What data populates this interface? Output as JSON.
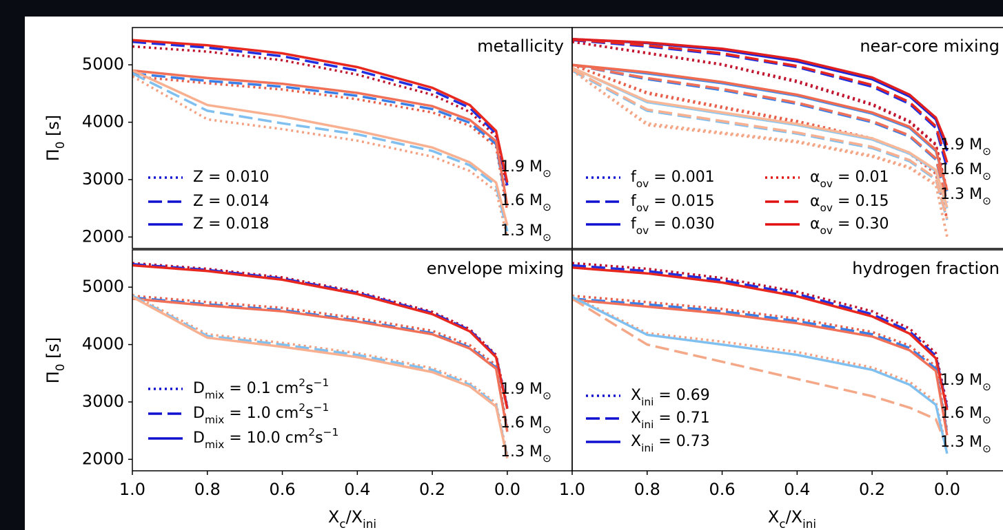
{
  "chart_data": [
    {
      "type": "line",
      "title": "metallicity",
      "ylabel": "Π_{0} [s]",
      "x": [
        1.0,
        0.8,
        0.6,
        0.4,
        0.2,
        0.1,
        0.03,
        0.0
      ],
      "xlim": [
        1.0,
        -0.173
      ],
      "ylim": [
        1800,
        5650
      ],
      "yticks": [
        2000,
        3000,
        4000,
        5000
      ],
      "masses": [
        "1.9 M_{⊙}",
        "1.6 M_{⊙}",
        "1.3 M_{⊙}"
      ],
      "variants": [
        {
          "name": "Z = 0.010",
          "dash": "dotted",
          "color": "#1010d0"
        },
        {
          "name": "Z = 0.014",
          "dash": "dashed",
          "color": "#1010d0"
        },
        {
          "name": "Z = 0.018",
          "dash": "solid",
          "color": "#1010d0"
        }
      ],
      "series": [
        {
          "variant": 0,
          "mass": 0,
          "color": "#c0142c",
          "values": [
            5320,
            5230,
            5080,
            4830,
            4480,
            4180,
            3750,
            2850
          ]
        },
        {
          "variant": 1,
          "mass": 0,
          "color": "#2030e0",
          "values": [
            5400,
            5300,
            5150,
            4900,
            4550,
            4250,
            3800,
            2900
          ]
        },
        {
          "variant": 2,
          "mass": 0,
          "color": "#e8281e",
          "values": [
            5430,
            5340,
            5200,
            4960,
            4600,
            4300,
            3850,
            2950
          ]
        },
        {
          "variant": 0,
          "mass": 1,
          "color": "#e8604a",
          "values": [
            4800,
            4680,
            4570,
            4400,
            4170,
            3940,
            3570,
            2450
          ]
        },
        {
          "variant": 1,
          "mass": 1,
          "color": "#3a7ee8",
          "values": [
            4850,
            4720,
            4620,
            4460,
            4230,
            3990,
            3620,
            2500
          ]
        },
        {
          "variant": 2,
          "mass": 1,
          "color": "#f07058",
          "values": [
            4900,
            4770,
            4670,
            4510,
            4280,
            4040,
            3670,
            2550
          ]
        },
        {
          "variant": 0,
          "mass": 2,
          "color": "#f4a080",
          "values": [
            4800,
            4050,
            3880,
            3680,
            3400,
            3150,
            2800,
            2000
          ]
        },
        {
          "variant": 1,
          "mass": 2,
          "color": "#80c0f0",
          "values": [
            4850,
            4200,
            3980,
            3790,
            3500,
            3250,
            2900,
            2100
          ]
        },
        {
          "variant": 2,
          "mass": 2,
          "color": "#f8b090",
          "values": [
            4900,
            4300,
            4100,
            3850,
            3560,
            3300,
            2950,
            2200
          ]
        }
      ]
    },
    {
      "type": "line",
      "title": "near-core mixing",
      "x": [
        1.0,
        0.8,
        0.6,
        0.4,
        0.2,
        0.1,
        0.03,
        0.0
      ],
      "xlim": [
        1.0,
        -0.173
      ],
      "ylim": [
        1800,
        5650
      ],
      "masses": [
        "1.9 M_{⊙}",
        "1.6 M_{⊙}",
        "1.3 M_{⊙}"
      ],
      "variants": [
        {
          "name": "f_{ov} = 0.001",
          "dash": "dotted",
          "color": "#1010d0"
        },
        {
          "name": "f_{ov} = 0.015",
          "dash": "dashed",
          "color": "#1010d0"
        },
        {
          "name": "f_{ov} = 0.030",
          "dash": "solid",
          "color": "#1010d0"
        },
        {
          "name": "α_{ov} = 0.01",
          "dash": "dotted",
          "color": "#e01010"
        },
        {
          "name": "α_{ov} = 0.15",
          "dash": "dashed",
          "color": "#e01010"
        },
        {
          "name": "α_{ov} = 0.30",
          "dash": "solid",
          "color": "#e01010"
        }
      ],
      "series": [
        {
          "variant": 0,
          "mass": 0,
          "color": "#b01030",
          "values": [
            5400,
            5200,
            5000,
            4700,
            4300,
            4000,
            3600,
            2800
          ]
        },
        {
          "variant": 1,
          "mass": 0,
          "color": "#2030e0",
          "values": [
            5430,
            5320,
            5180,
            4960,
            4620,
            4320,
            3900,
            3200
          ]
        },
        {
          "variant": 2,
          "mass": 0,
          "color": "#1828d8",
          "values": [
            5450,
            5380,
            5260,
            5060,
            4750,
            4450,
            4050,
            3500
          ]
        },
        {
          "variant": 3,
          "mass": 0,
          "color": "#c81830",
          "values": [
            5400,
            5210,
            5010,
            4720,
            4320,
            4020,
            3620,
            2820
          ]
        },
        {
          "variant": 4,
          "mass": 0,
          "color": "#e8281e",
          "values": [
            5440,
            5340,
            5200,
            4980,
            4650,
            4350,
            3930,
            3300
          ]
        },
        {
          "variant": 5,
          "mass": 0,
          "color": "#e02020",
          "values": [
            5450,
            5390,
            5280,
            5090,
            4780,
            4480,
            4080,
            3600
          ]
        },
        {
          "variant": 0,
          "mass": 1,
          "color": "#e86050",
          "values": [
            5000,
            4500,
            4250,
            4000,
            3700,
            3450,
            3100,
            2300
          ]
        },
        {
          "variant": 1,
          "mass": 1,
          "color": "#3a7ee8",
          "values": [
            5000,
            4750,
            4560,
            4320,
            4000,
            3750,
            3350,
            2600
          ]
        },
        {
          "variant": 2,
          "mass": 1,
          "color": "#4a8ee8",
          "values": [
            5000,
            4850,
            4680,
            4460,
            4150,
            3900,
            3500,
            2800
          ]
        },
        {
          "variant": 3,
          "mass": 1,
          "color": "#e8604a",
          "values": [
            5000,
            4520,
            4270,
            4020,
            3720,
            3470,
            3120,
            2320
          ]
        },
        {
          "variant": 4,
          "mass": 1,
          "color": "#f07058",
          "values": [
            5000,
            4770,
            4580,
            4340,
            4020,
            3770,
            3370,
            2620
          ]
        },
        {
          "variant": 5,
          "mass": 1,
          "color": "#f06a50",
          "values": [
            5000,
            4870,
            4700,
            4480,
            4170,
            3920,
            3520,
            2820
          ]
        },
        {
          "variant": 0,
          "mass": 2,
          "color": "#f4a080",
          "values": [
            4900,
            3950,
            3800,
            3650,
            3400,
            3200,
            2900,
            2000
          ]
        },
        {
          "variant": 1,
          "mass": 2,
          "color": "#80c0f0",
          "values": [
            4900,
            4200,
            4000,
            3800,
            3550,
            3320,
            3000,
            2300
          ]
        },
        {
          "variant": 2,
          "mass": 2,
          "color": "#90c8f0",
          "values": [
            4950,
            4350,
            4150,
            3950,
            3700,
            3450,
            3150,
            2500
          ]
        },
        {
          "variant": 3,
          "mass": 2,
          "color": "#f4a888",
          "values": [
            4900,
            3980,
            3820,
            3670,
            3420,
            3220,
            2920,
            2020
          ]
        },
        {
          "variant": 4,
          "mass": 2,
          "color": "#f8b090",
          "values": [
            4920,
            4220,
            4020,
            3820,
            3570,
            3340,
            3020,
            2320
          ]
        },
        {
          "variant": 5,
          "mass": 2,
          "color": "#f8b898",
          "values": [
            4950,
            4370,
            4170,
            3970,
            3720,
            3470,
            3170,
            2520
          ]
        }
      ]
    },
    {
      "type": "line",
      "title": "envelope mixing",
      "ylabel": "Π_{0} [s]",
      "xlabel": "X_{c}/X_{ini}",
      "x": [
        1.0,
        0.8,
        0.6,
        0.4,
        0.2,
        0.1,
        0.03,
        0.0
      ],
      "xlim": [
        1.0,
        -0.173
      ],
      "ylim": [
        1800,
        5650
      ],
      "xticks": [
        {
          "value": 1.0,
          "label": "1.0"
        },
        0.8,
        0.6,
        0.4,
        0.2,
        {
          "value": 0.0,
          "label": "0.0"
        }
      ],
      "yticks": [
        2000,
        3000,
        4000,
        5000
      ],
      "masses": [
        "1.9 M_{⊙}",
        "1.6 M_{⊙}",
        "1.3 M_{⊙}"
      ],
      "variants": [
        {
          "name": "D_{mix} = 0.1 cm^{2}s^{−1}",
          "dash": "dotted",
          "color": "#1010d0"
        },
        {
          "name": "D_{mix} = 1.0 cm^{2}s^{−1}",
          "dash": "dashed",
          "color": "#1010d0"
        },
        {
          "name": "D_{mix} = 10.0 cm^{2}s^{−1}",
          "dash": "solid",
          "color": "#1010d0"
        }
      ],
      "series": [
        {
          "variant": 0,
          "mass": 0,
          "color": "#c0142c",
          "values": [
            5420,
            5320,
            5170,
            4920,
            4570,
            4270,
            3820,
            2920
          ]
        },
        {
          "variant": 1,
          "mass": 0,
          "color": "#2030e0",
          "values": [
            5400,
            5300,
            5150,
            4900,
            4550,
            4250,
            3800,
            2900
          ]
        },
        {
          "variant": 2,
          "mass": 0,
          "color": "#e8281e",
          "values": [
            5380,
            5280,
            5130,
            4880,
            4530,
            4230,
            3780,
            2880
          ]
        },
        {
          "variant": 0,
          "mass": 1,
          "color": "#e8604a",
          "values": [
            4850,
            4740,
            4640,
            4460,
            4240,
            3990,
            3640,
            2540
          ]
        },
        {
          "variant": 1,
          "mass": 1,
          "color": "#3a7ee8",
          "values": [
            4820,
            4700,
            4600,
            4420,
            4200,
            3950,
            3600,
            2500
          ]
        },
        {
          "variant": 2,
          "mass": 1,
          "color": "#f07058",
          "values": [
            4800,
            4680,
            4580,
            4400,
            4180,
            3930,
            3580,
            2480
          ]
        },
        {
          "variant": 0,
          "mass": 2,
          "color": "#f4a080",
          "values": [
            4870,
            4180,
            4030,
            3850,
            3590,
            3330,
            2980,
            2080
          ]
        },
        {
          "variant": 1,
          "mass": 2,
          "color": "#80c0f0",
          "values": [
            4850,
            4150,
            4000,
            3820,
            3560,
            3300,
            2950,
            2050
          ]
        },
        {
          "variant": 2,
          "mass": 2,
          "color": "#f8b090",
          "values": [
            4830,
            4120,
            3960,
            3780,
            3520,
            3270,
            2920,
            2020
          ]
        }
      ]
    },
    {
      "type": "line",
      "title": "hydrogen fraction",
      "xlabel": "X_{c}/X_{ini}",
      "x": [
        1.0,
        0.8,
        0.6,
        0.4,
        0.2,
        0.1,
        0.03,
        0.0
      ],
      "xlim": [
        1.0,
        -0.173
      ],
      "ylim": [
        1800,
        5650
      ],
      "xticks": [
        {
          "value": 1.0,
          "label": "1.0"
        },
        0.8,
        0.6,
        0.4,
        0.2,
        {
          "value": 0.0,
          "label": "0.0"
        }
      ],
      "masses": [
        "1.9 M_{⊙}",
        "1.6 M_{⊙}",
        "1.3 M_{⊙}"
      ],
      "variants": [
        {
          "name": "X_{ini} = 0.69",
          "dash": "dotted",
          "color": "#1010d0"
        },
        {
          "name": "X_{ini} = 0.71",
          "dash": "dashed",
          "color": "#1010d0"
        },
        {
          "name": "X_{ini} = 0.73",
          "dash": "solid",
          "color": "#1010d0"
        }
      ],
      "series": [
        {
          "variant": 0,
          "mass": 0,
          "color": "#c0142c",
          "values": [
            5420,
            5320,
            5160,
            4920,
            4580,
            4280,
            3850,
            2950
          ]
        },
        {
          "variant": 1,
          "mass": 0,
          "color": "#2030e0",
          "values": [
            5380,
            5280,
            5120,
            4880,
            4530,
            4230,
            3800,
            2900
          ]
        },
        {
          "variant": 2,
          "mass": 0,
          "color": "#e8281e",
          "values": [
            5340,
            5240,
            5080,
            4840,
            4490,
            4190,
            3760,
            2860
          ]
        },
        {
          "variant": 0,
          "mass": 1,
          "color": "#e8604a",
          "values": [
            4850,
            4740,
            4620,
            4450,
            4220,
            3980,
            3620,
            2500
          ]
        },
        {
          "variant": 1,
          "mass": 1,
          "color": "#3a7ee8",
          "values": [
            4800,
            4700,
            4580,
            4410,
            4180,
            3940,
            3580,
            2460
          ]
        },
        {
          "variant": 2,
          "mass": 1,
          "color": "#f07058",
          "values": [
            4780,
            4660,
            4540,
            4370,
            4140,
            3900,
            3540,
            2420
          ]
        },
        {
          "variant": 0,
          "mass": 2,
          "color": "#f4a080",
          "values": [
            4850,
            4200,
            4050,
            3870,
            3600,
            3350,
            3000,
            2150
          ]
        },
        {
          "variant": 1,
          "mass": 2,
          "color": "#f4a888",
          "values": [
            4800,
            4000,
            3700,
            3400,
            3100,
            2900,
            2700,
            2200
          ]
        },
        {
          "variant": 2,
          "mass": 2,
          "color": "#80c0f0",
          "values": [
            4830,
            4170,
            4000,
            3820,
            3560,
            3300,
            2950,
            2100
          ]
        }
      ]
    }
  ]
}
